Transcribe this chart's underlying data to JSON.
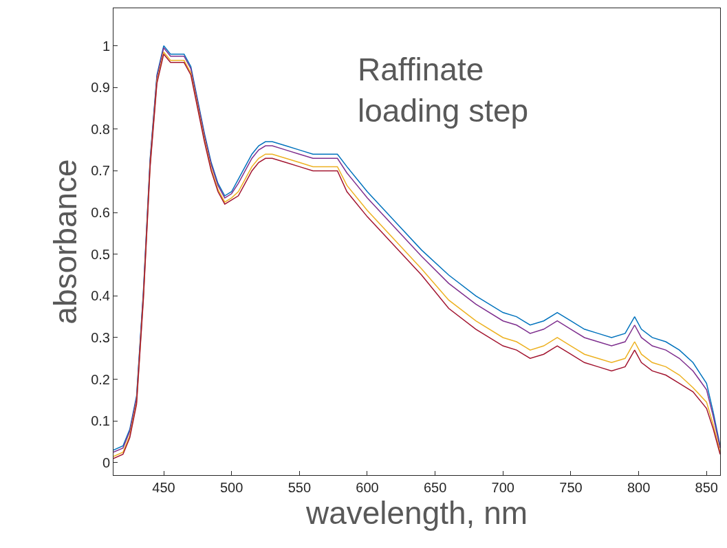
{
  "chart_data": {
    "type": "line",
    "xlabel": "wavelength, nm",
    "ylabel": "absorbance",
    "annotations": [
      "Raffinate\nloading step"
    ],
    "x": [
      413,
      420,
      425,
      430,
      435,
      440,
      445,
      450,
      455,
      460,
      465,
      470,
      475,
      480,
      485,
      490,
      495,
      500,
      505,
      510,
      515,
      520,
      525,
      530,
      540,
      550,
      560,
      570,
      578,
      585,
      600,
      620,
      640,
      660,
      680,
      700,
      710,
      720,
      730,
      740,
      750,
      760,
      770,
      780,
      790,
      797,
      802,
      810,
      820,
      830,
      840,
      850,
      855,
      860
    ],
    "series": [
      {
        "color": "#0072bd",
        "values": [
          0.03,
          0.04,
          0.08,
          0.16,
          0.41,
          0.73,
          0.93,
          1.0,
          0.98,
          0.98,
          0.98,
          0.95,
          0.87,
          0.79,
          0.72,
          0.67,
          0.64,
          0.65,
          0.68,
          0.71,
          0.74,
          0.76,
          0.77,
          0.77,
          0.76,
          0.75,
          0.74,
          0.74,
          0.74,
          0.71,
          0.65,
          0.58,
          0.51,
          0.45,
          0.4,
          0.36,
          0.35,
          0.33,
          0.34,
          0.36,
          0.34,
          0.32,
          0.31,
          0.3,
          0.31,
          0.35,
          0.32,
          0.3,
          0.29,
          0.27,
          0.24,
          0.19,
          0.12,
          0.04
        ]
      },
      {
        "color": "#7e2f8e",
        "values": [
          0.025,
          0.035,
          0.075,
          0.155,
          0.405,
          0.725,
          0.925,
          0.995,
          0.975,
          0.975,
          0.975,
          0.945,
          0.865,
          0.785,
          0.715,
          0.665,
          0.635,
          0.645,
          0.67,
          0.7,
          0.73,
          0.75,
          0.76,
          0.76,
          0.75,
          0.74,
          0.73,
          0.73,
          0.73,
          0.695,
          0.635,
          0.565,
          0.495,
          0.43,
          0.38,
          0.34,
          0.33,
          0.31,
          0.32,
          0.34,
          0.32,
          0.3,
          0.29,
          0.28,
          0.29,
          0.33,
          0.3,
          0.28,
          0.27,
          0.25,
          0.22,
          0.175,
          0.11,
          0.035
        ]
      },
      {
        "color": "#edb120",
        "values": [
          0.015,
          0.025,
          0.065,
          0.145,
          0.395,
          0.715,
          0.915,
          0.985,
          0.965,
          0.965,
          0.965,
          0.935,
          0.855,
          0.775,
          0.705,
          0.655,
          0.625,
          0.635,
          0.65,
          0.68,
          0.71,
          0.73,
          0.74,
          0.74,
          0.73,
          0.72,
          0.71,
          0.71,
          0.71,
          0.665,
          0.605,
          0.535,
          0.465,
          0.39,
          0.34,
          0.3,
          0.29,
          0.27,
          0.28,
          0.3,
          0.28,
          0.26,
          0.25,
          0.24,
          0.25,
          0.29,
          0.26,
          0.24,
          0.23,
          0.21,
          0.18,
          0.145,
          0.09,
          0.025
        ]
      },
      {
        "color": "#a2142f",
        "values": [
          0.01,
          0.02,
          0.06,
          0.14,
          0.39,
          0.71,
          0.91,
          0.98,
          0.96,
          0.96,
          0.96,
          0.93,
          0.85,
          0.77,
          0.7,
          0.65,
          0.62,
          0.63,
          0.64,
          0.67,
          0.7,
          0.72,
          0.73,
          0.73,
          0.72,
          0.71,
          0.7,
          0.7,
          0.7,
          0.65,
          0.59,
          0.52,
          0.45,
          0.37,
          0.32,
          0.28,
          0.27,
          0.25,
          0.26,
          0.28,
          0.26,
          0.24,
          0.23,
          0.22,
          0.23,
          0.27,
          0.24,
          0.22,
          0.21,
          0.19,
          0.17,
          0.13,
          0.08,
          0.02
        ]
      }
    ],
    "xlim": [
      413,
      860
    ],
    "ylim": [
      -0.03,
      1.09
    ],
    "xticks": [
      450,
      500,
      550,
      600,
      650,
      700,
      750,
      800,
      850
    ],
    "yticks": [
      0,
      0.1,
      0.2,
      0.3,
      0.4,
      0.5,
      0.6,
      0.7,
      0.8,
      0.9,
      1
    ],
    "marker": "none"
  }
}
